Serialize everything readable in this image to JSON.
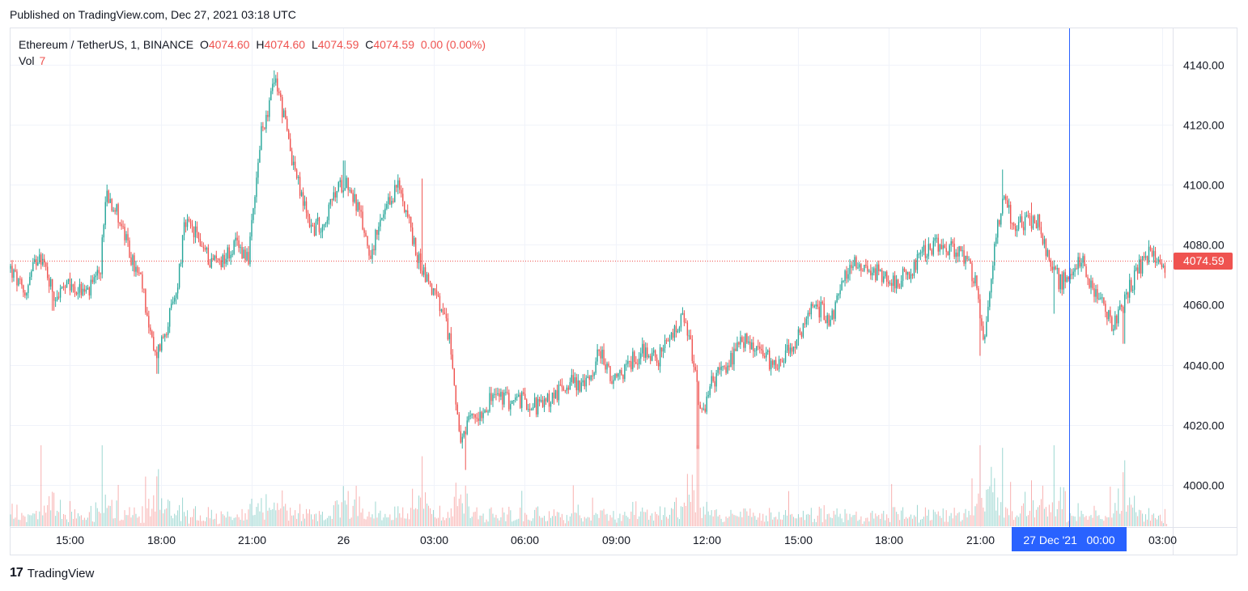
{
  "header": {
    "published": "Published on TradingView.com, Dec 27, 2021 03:18 UTC"
  },
  "legend": {
    "symbol": "Ethereum / TetherUS, 1, BINANCE",
    "open_label": "O",
    "open": "4074.60",
    "high_label": "H",
    "high": "4074.60",
    "low_label": "L",
    "low": "4074.59",
    "close_label": "C",
    "close": "4074.59",
    "change": "0.00 (0.00%)",
    "volume_label": "Vol",
    "volume": "7"
  },
  "footer": {
    "logo_text": "TradingView",
    "logo_mark": "17"
  },
  "colors": {
    "up": "#26a69a",
    "down": "#ef5350",
    "crosshair": "#2962ff",
    "grid": "#f0f3fa"
  },
  "chart_data": {
    "type": "candlestick",
    "title": "Ethereum / TetherUS, 1, BINANCE",
    "interval": "1 minute",
    "y_axis": {
      "ticks": [
        4000,
        4020,
        4040,
        4060,
        4080,
        4100,
        4120,
        4140
      ],
      "tick_labels": [
        "4000.00",
        "4020.00",
        "4040.00",
        "4060.00",
        "4080.00",
        "4100.00",
        "4120.00",
        "4140.00"
      ],
      "ylim": [
        3986,
        4152
      ]
    },
    "x_axis": {
      "ticks": [
        {
          "hours": 15,
          "label": "15:00"
        },
        {
          "hours": 18,
          "label": "18:00"
        },
        {
          "hours": 21,
          "label": "21:00"
        },
        {
          "hours": 24,
          "label": "26"
        },
        {
          "hours": 27,
          "label": "03:00"
        },
        {
          "hours": 30,
          "label": "06:00"
        },
        {
          "hours": 33,
          "label": "09:00"
        },
        {
          "hours": 36,
          "label": "12:00"
        },
        {
          "hours": 39,
          "label": "15:00"
        },
        {
          "hours": 42,
          "label": "18:00"
        },
        {
          "hours": 45,
          "label": "21:00"
        },
        {
          "hours": 51,
          "label": "03:00"
        }
      ],
      "xlim_hours": [
        13.05,
        51.3
      ],
      "crosshair": {
        "hours": 47.95,
        "label": "27 Dec '21   00:00"
      }
    },
    "last_price": {
      "value": 4074.59,
      "label": "4074.59"
    },
    "price_path": [
      [
        13.05,
        4072
      ],
      [
        13.5,
        4063
      ],
      [
        14.0,
        4078
      ],
      [
        14.5,
        4063
      ],
      [
        15.0,
        4066
      ],
      [
        15.6,
        4064
      ],
      [
        16.0,
        4070
      ],
      [
        16.2,
        4098
      ],
      [
        16.6,
        4090
      ],
      [
        17.0,
        4076
      ],
      [
        17.4,
        4066
      ],
      [
        17.8,
        4042
      ],
      [
        18.1,
        4050
      ],
      [
        18.5,
        4063
      ],
      [
        18.8,
        4087
      ],
      [
        19.2,
        4083
      ],
      [
        19.6,
        4075
      ],
      [
        20.0,
        4075
      ],
      [
        20.5,
        4080
      ],
      [
        20.9,
        4076
      ],
      [
        21.1,
        4095
      ],
      [
        21.3,
        4116
      ],
      [
        21.6,
        4128
      ],
      [
        21.8,
        4135
      ],
      [
        22.2,
        4115
      ],
      [
        22.6,
        4097
      ],
      [
        23.0,
        4085
      ],
      [
        23.4,
        4088
      ],
      [
        23.8,
        4098
      ],
      [
        24.1,
        4102
      ],
      [
        24.5,
        4092
      ],
      [
        24.9,
        4077
      ],
      [
        25.3,
        4088
      ],
      [
        25.8,
        4100
      ],
      [
        26.1,
        4092
      ],
      [
        26.4,
        4077
      ],
      [
        26.8,
        4068
      ],
      [
        27.1,
        4062
      ],
      [
        27.3,
        4056
      ],
      [
        27.5,
        4050
      ],
      [
        27.7,
        4032
      ],
      [
        27.9,
        4012
      ],
      [
        28.2,
        4022
      ],
      [
        28.6,
        4025
      ],
      [
        29.0,
        4030
      ],
      [
        29.5,
        4028
      ],
      [
        30.0,
        4028
      ],
      [
        30.5,
        4026
      ],
      [
        31.0,
        4030
      ],
      [
        31.5,
        4035
      ],
      [
        32.0,
        4033
      ],
      [
        32.5,
        4045
      ],
      [
        32.9,
        4033
      ],
      [
        33.4,
        4040
      ],
      [
        33.9,
        4045
      ],
      [
        34.4,
        4042
      ],
      [
        34.9,
        4050
      ],
      [
        35.2,
        4055
      ],
      [
        35.5,
        4045
      ],
      [
        35.8,
        4022
      ],
      [
        36.2,
        4035
      ],
      [
        36.7,
        4040
      ],
      [
        37.2,
        4048
      ],
      [
        37.7,
        4045
      ],
      [
        38.2,
        4040
      ],
      [
        38.7,
        4045
      ],
      [
        39.1,
        4050
      ],
      [
        39.5,
        4060
      ],
      [
        39.8,
        4058
      ],
      [
        40.1,
        4055
      ],
      [
        40.4,
        4065
      ],
      [
        40.8,
        4075
      ],
      [
        41.3,
        4072
      ],
      [
        41.8,
        4070
      ],
      [
        42.3,
        4068
      ],
      [
        42.8,
        4072
      ],
      [
        43.2,
        4078
      ],
      [
        43.7,
        4080
      ],
      [
        44.2,
        4078
      ],
      [
        44.6,
        4075
      ],
      [
        44.9,
        4065
      ],
      [
        45.1,
        4048
      ],
      [
        45.3,
        4062
      ],
      [
        45.5,
        4082
      ],
      [
        45.8,
        4098
      ],
      [
        46.1,
        4085
      ],
      [
        46.5,
        4088
      ],
      [
        46.9,
        4088
      ],
      [
        47.2,
        4078
      ],
      [
        47.6,
        4068
      ],
      [
        48.0,
        4068
      ],
      [
        48.3,
        4076
      ],
      [
        48.6,
        4068
      ],
      [
        49.0,
        4060
      ],
      [
        49.4,
        4053
      ],
      [
        49.8,
        4062
      ],
      [
        50.2,
        4072
      ],
      [
        50.6,
        4077
      ],
      [
        50.9,
        4076
      ],
      [
        51.0,
        4072
      ],
      [
        51.15,
        4074.59
      ]
    ],
    "spikes": [
      {
        "hours": 14.45,
        "low": 4058
      },
      {
        "hours": 17.9,
        "low": 4037
      },
      {
        "hours": 16.25,
        "high": 4100
      },
      {
        "hours": 21.75,
        "high": 4138
      },
      {
        "hours": 24.05,
        "high": 4108
      },
      {
        "hours": 26.6,
        "high": 4102
      },
      {
        "hours": 28.05,
        "low": 4005
      },
      {
        "hours": 35.7,
        "low": 4012
      },
      {
        "hours": 35.2,
        "high": 4059
      },
      {
        "hours": 45.0,
        "low": 4043
      },
      {
        "hours": 45.75,
        "high": 4105
      },
      {
        "hours": 46.7,
        "high": 4094
      },
      {
        "hours": 49.75,
        "low": 4047
      },
      {
        "hours": 47.45,
        "low": 4057
      }
    ]
  }
}
